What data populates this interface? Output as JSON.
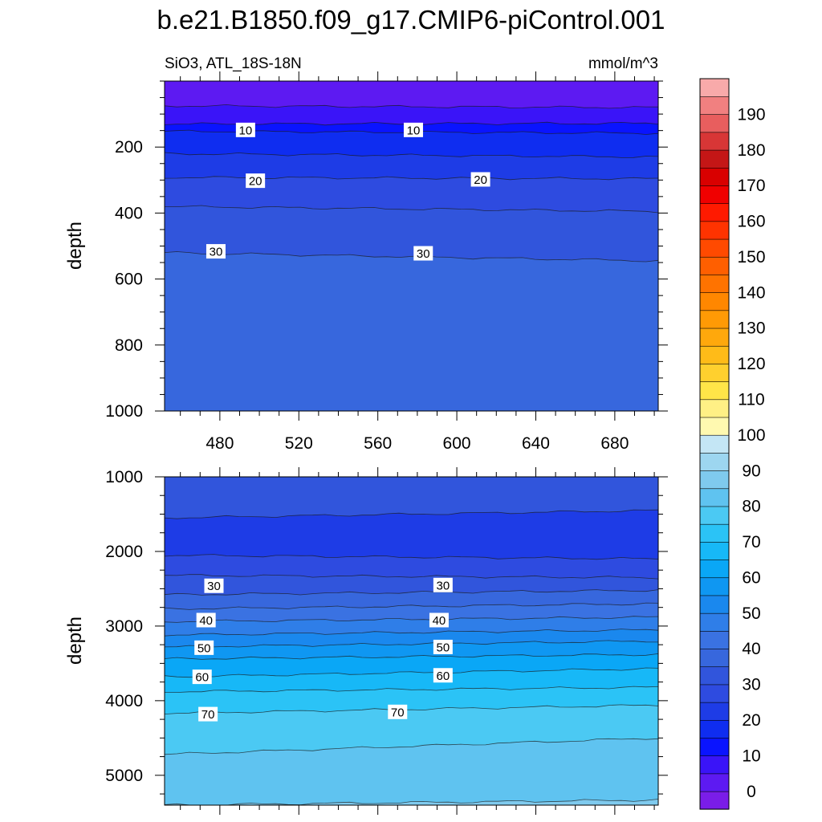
{
  "title": "b.e21.B1850.f09_g17.CMIP6-piControl.001",
  "chart_data": {
    "type": "heatmap",
    "subtitle_left": "SiO3, ATL_18S-18N",
    "subtitle_right": "mmol/m^3",
    "xlim": [
      452,
      702
    ],
    "xticks": [
      480,
      520,
      560,
      600,
      640,
      680
    ],
    "panels": [
      {
        "name": "upper",
        "ylabel": "depth",
        "ylim": [
          0,
          1000
        ],
        "yticks": [
          200,
          400,
          600,
          800,
          1000
        ],
        "top_depth": 0,
        "bottom_value": 32,
        "contours": [
          {
            "level": 5,
            "y_left": 75,
            "y_right": 80
          },
          {
            "level": 10,
            "y_left": 130,
            "y_right": 128
          },
          {
            "level": 15,
            "y_left": 152,
            "y_right": 158
          },
          {
            "level": 20,
            "y_left": 220,
            "y_right": 230
          },
          {
            "level": 25,
            "y_left": 292,
            "y_right": 296
          },
          {
            "level": 30,
            "y_left": 380,
            "y_right": 395
          },
          {
            "level": 35,
            "y_left": 520,
            "y_right": 545
          }
        ],
        "labels": [
          {
            "text": "10",
            "x": 493,
            "y": 148
          },
          {
            "text": "10",
            "x": 578,
            "y": 148
          },
          {
            "text": "20",
            "x": 498,
            "y": 302
          },
          {
            "text": "20",
            "x": 612,
            "y": 298
          },
          {
            "text": "30",
            "x": 478,
            "y": 516
          },
          {
            "text": "30",
            "x": 583,
            "y": 522
          }
        ]
      },
      {
        "name": "lower",
        "ylabel": "depth",
        "ylim": [
          1000,
          5400
        ],
        "yticks": [
          1000,
          2000,
          3000,
          4000,
          5000
        ],
        "top_value": 30,
        "bottom_value": 85,
        "contours": [
          {
            "level": 25,
            "y_left": 1550,
            "y_right": 1450
          },
          {
            "level": 20,
            "y_left": 2050,
            "y_right": 2100
          },
          {
            "level": 25,
            "y_left": 2320,
            "y_right": 2350
          },
          {
            "level": 30,
            "y_left": 2580,
            "y_right": 2520
          },
          {
            "level": 35,
            "y_left": 2770,
            "y_right": 2700
          },
          {
            "level": 40,
            "y_left": 2940,
            "y_right": 2880
          },
          {
            "level": 45,
            "y_left": 3120,
            "y_right": 3050
          },
          {
            "level": 50,
            "y_left": 3280,
            "y_right": 3200
          },
          {
            "level": 55,
            "y_left": 3440,
            "y_right": 3380
          },
          {
            "level": 60,
            "y_left": 3680,
            "y_right": 3570
          },
          {
            "level": 65,
            "y_left": 3880,
            "y_right": 3820
          },
          {
            "level": 70,
            "y_left": 4170,
            "y_right": 4060
          },
          {
            "level": 75,
            "y_left": 4720,
            "y_right": 4500
          },
          {
            "level": 80,
            "y_left": 5400,
            "y_right": 5330
          }
        ],
        "labels": [
          {
            "text": "30",
            "x": 477,
            "y": 2460
          },
          {
            "text": "30",
            "x": 593,
            "y": 2450
          },
          {
            "text": "40",
            "x": 473,
            "y": 2920
          },
          {
            "text": "40",
            "x": 591,
            "y": 2920
          },
          {
            "text": "50",
            "x": 472,
            "y": 3290
          },
          {
            "text": "50",
            "x": 593,
            "y": 3280
          },
          {
            "text": "60",
            "x": 471,
            "y": 3680
          },
          {
            "text": "60",
            "x": 593,
            "y": 3660
          },
          {
            "text": "70",
            "x": 474,
            "y": 4180
          },
          {
            "text": "70",
            "x": 570,
            "y": 4150
          }
        ]
      }
    ],
    "colorbar": {
      "labels": [
        "0",
        "10",
        "20",
        "30",
        "40",
        "50",
        "60",
        "70",
        "80",
        "90",
        "100",
        "110",
        "120",
        "130",
        "140",
        "150",
        "160",
        "170",
        "180",
        "190"
      ],
      "levels": [
        -5,
        0,
        5,
        10,
        15,
        20,
        25,
        30,
        35,
        40,
        45,
        50,
        55,
        60,
        65,
        70,
        75,
        80,
        85,
        90,
        95,
        100,
        105,
        110,
        115,
        120,
        125,
        130,
        135,
        140,
        145,
        150,
        155,
        160,
        165,
        170,
        175,
        180,
        185,
        190,
        195
      ],
      "colors": [
        "#7a1de8",
        "#5d1af2",
        "#3a14f8",
        "#0a14ff",
        "#0f2df0",
        "#1e3ce6",
        "#2e4be0",
        "#3155dc",
        "#3767dd",
        "#3a72e2",
        "#2f7ee8",
        "#1a88ee",
        "#0f97f2",
        "#0aa7f6",
        "#17b8f7",
        "#2bc3f6",
        "#4bc9f3",
        "#5fc3f0",
        "#7fcaee",
        "#9dd6f0",
        "#c4e6f5",
        "#fff9b0",
        "#fff085",
        "#ffe548",
        "#ffd02e",
        "#ffbb18",
        "#ffa80c",
        "#ff9a05",
        "#ff8700",
        "#ff7300",
        "#ff5f00",
        "#ff4a00",
        "#ff3300",
        "#ff1a00",
        "#f00000",
        "#d90000",
        "#c41616",
        "#d83636",
        "#e85e5e",
        "#f18080",
        "#f8aaaa"
      ]
    }
  }
}
